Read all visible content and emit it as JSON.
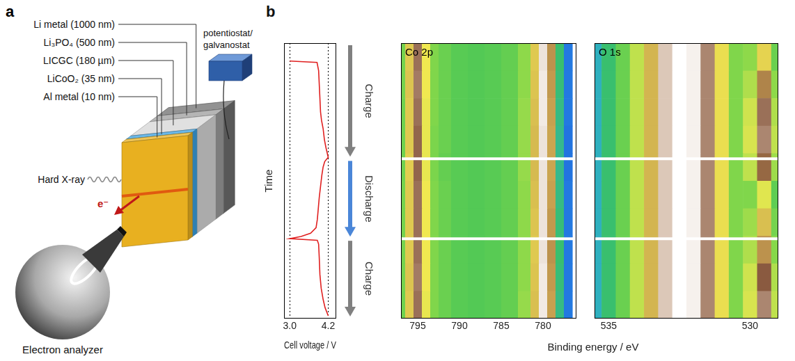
{
  "panel_a": {
    "letter": "a",
    "layers": [
      {
        "label": "Li metal (1000 nm)",
        "color": "#6e6e6e"
      },
      {
        "label": "Li₃PO₄ (500 nm)",
        "color": "#9c9c9c"
      },
      {
        "label": "LICGC (180 µm)",
        "color": "#d6d6d6"
      },
      {
        "label": "LiCoO₂ (35 nm)",
        "color": "#3aa0e0"
      },
      {
        "label": "Al metal (10 nm)",
        "color": "#e8b020"
      }
    ],
    "instrument": "potentiostat/galvanostat",
    "beam": "Hard X-ray",
    "electron": "e⁻",
    "analyzer": "Electron analyzer"
  },
  "panel_b": {
    "letter": "b",
    "shared_x_label": "Binding energy / eV",
    "phases": [
      {
        "label": "Charge",
        "start": 0,
        "end": 42,
        "color": "#808080"
      },
      {
        "label": "Discharge",
        "start": 42,
        "end": 71,
        "color": "#4a86d8"
      },
      {
        "label": "Charge",
        "start": 71,
        "end": 100,
        "color": "#808080"
      }
    ]
  },
  "chart_data": [
    {
      "type": "line",
      "x_label": "Cell voltage / V",
      "y_label": "Time",
      "x": [
        3.0,
        3.85,
        3.9,
        3.92,
        3.94,
        3.96,
        3.99,
        4.04,
        4.08,
        4.13,
        4.2,
        4.16,
        4.09,
        4.04,
        4.0,
        3.96,
        3.92,
        3.89,
        3.86,
        3.82,
        3.65,
        3.35,
        3.0,
        3.86,
        3.9,
        3.92,
        3.94,
        3.98,
        4.04,
        4.1,
        4.2
      ],
      "y": [
        6.5,
        7,
        10,
        15,
        20,
        25,
        28,
        31,
        35,
        38,
        41.5,
        42,
        43,
        45,
        48,
        52,
        56,
        60,
        64,
        67,
        69,
        70.2,
        71,
        71.6,
        73,
        78,
        84,
        89,
        93,
        96,
        99
      ],
      "color": "#e02020",
      "xlim": [
        2.82,
        4.45
      ],
      "xticks": [
        {
          "value": 3,
          "label": "3.0"
        },
        {
          "value": 4.2,
          "label": "4.2"
        }
      ],
      "ylim": [
        0,
        100
      ],
      "tick_labels": "x",
      "grid": true
    },
    {
      "type": "heatmap",
      "title": "Co 2p",
      "x": [
        797,
        796,
        795,
        794,
        793,
        792,
        790,
        788,
        786,
        784,
        782,
        781,
        780,
        779,
        778,
        777
      ],
      "y": [
        5,
        15,
        25,
        35,
        45,
        55,
        65,
        75,
        85,
        95
      ],
      "z": [
        [
          42,
          64,
          84,
          58,
          44,
          40,
          37,
          36,
          37,
          39,
          46,
          64,
          96,
          74,
          30,
          10
        ],
        [
          42,
          65,
          85,
          58,
          44,
          40,
          37,
          36,
          37,
          39,
          46,
          65,
          97,
          73,
          29,
          10
        ],
        [
          41,
          64,
          84,
          57,
          44,
          40,
          37,
          36,
          37,
          39,
          47,
          66,
          97,
          72,
          28,
          10
        ],
        [
          41,
          64,
          83,
          57,
          43,
          40,
          37,
          36,
          37,
          39,
          47,
          67,
          96,
          71,
          27,
          9
        ],
        [
          41,
          63,
          83,
          57,
          43,
          39,
          37,
          36,
          37,
          39,
          47,
          67,
          96,
          71,
          27,
          9
        ],
        [
          42,
          64,
          84,
          58,
          44,
          40,
          37,
          36,
          37,
          39,
          46,
          66,
          96,
          72,
          28,
          10
        ],
        [
          42,
          64,
          84,
          58,
          44,
          40,
          37,
          36,
          37,
          39,
          46,
          65,
          96,
          73,
          29,
          10
        ],
        [
          42,
          64,
          84,
          58,
          44,
          40,
          37,
          36,
          37,
          39,
          46,
          64,
          96,
          74,
          30,
          10
        ],
        [
          42,
          65,
          85,
          58,
          44,
          40,
          37,
          36,
          37,
          39,
          46,
          65,
          97,
          73,
          29,
          10
        ],
        [
          41,
          64,
          84,
          57,
          44,
          40,
          37,
          36,
          37,
          39,
          47,
          66,
          97,
          72,
          28,
          10
        ]
      ],
      "zlim": [
        0,
        100
      ],
      "xlim": [
        797,
        776
      ],
      "xticks": [
        795,
        790,
        785,
        780
      ],
      "ylim": [
        0,
        100
      ],
      "tick_labels": "x",
      "grid": false
    },
    {
      "type": "heatmap",
      "title": "O 1s",
      "x": [
        535.5,
        535,
        534.5,
        534,
        533.5,
        533,
        532.5,
        532,
        531.5,
        531,
        530.5,
        530,
        529.5,
        529
      ],
      "y": [
        5,
        15,
        25,
        35,
        45,
        55,
        65,
        75,
        85,
        95
      ],
      "z": [
        [
          22,
          30,
          40,
          52,
          68,
          92,
          100,
          98,
          86,
          60,
          44,
          46,
          62,
          40
        ],
        [
          22,
          30,
          40,
          52,
          68,
          92,
          100,
          98,
          86,
          60,
          44,
          50,
          76,
          46
        ],
        [
          22,
          30,
          40,
          52,
          68,
          92,
          100,
          98,
          86,
          60,
          44,
          54,
          84,
          50
        ],
        [
          22,
          30,
          40,
          52,
          68,
          92,
          100,
          98,
          86,
          60,
          44,
          55,
          86,
          52
        ],
        [
          22,
          30,
          40,
          52,
          68,
          92,
          100,
          98,
          86,
          60,
          44,
          52,
          80,
          48
        ],
        [
          22,
          30,
          40,
          52,
          68,
          92,
          100,
          98,
          86,
          60,
          44,
          44,
          56,
          38
        ],
        [
          22,
          30,
          40,
          52,
          68,
          92,
          100,
          98,
          86,
          60,
          44,
          48,
          66,
          42
        ],
        [
          22,
          30,
          40,
          52,
          68,
          92,
          100,
          98,
          86,
          60,
          44,
          50,
          74,
          45
        ],
        [
          22,
          30,
          40,
          52,
          68,
          92,
          100,
          98,
          86,
          60,
          44,
          54,
          82,
          50
        ],
        [
          22,
          30,
          40,
          52,
          68,
          92,
          100,
          98,
          86,
          60,
          44,
          55,
          86,
          52
        ]
      ],
      "zlim": [
        0,
        100
      ],
      "xlim": [
        535.5,
        529
      ],
      "xticks": [
        535,
        530
      ],
      "ylim": [
        0,
        100
      ],
      "tick_labels": "x",
      "grid": false
    }
  ]
}
